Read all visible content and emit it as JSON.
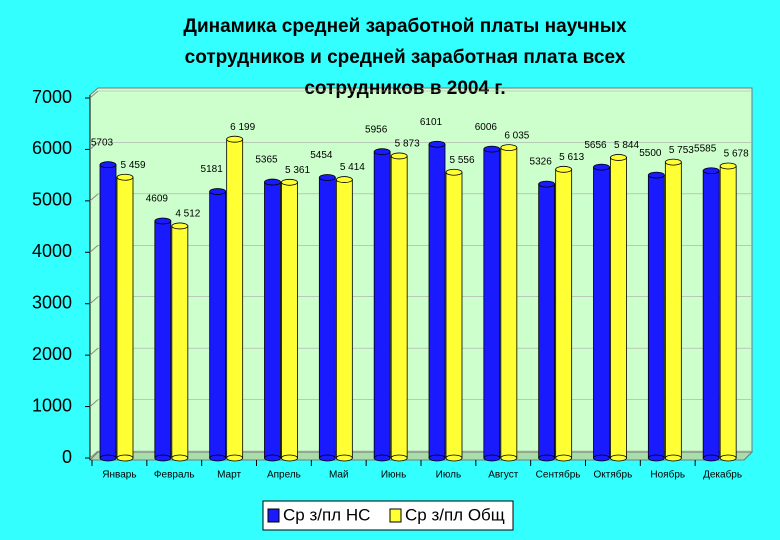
{
  "chart_data": {
    "type": "bar",
    "title": [
      "Динамика средней заработной платы научных",
      "сотрудников и средней заработная плата всех",
      "сотрудников в 2004 г."
    ],
    "categories": [
      "Январь",
      "Февраль",
      "Март",
      "Апрель",
      "Май",
      "Июнь",
      "Июль",
      "Август",
      "Сентябрь",
      "Октябрь",
      "Ноябрь",
      "Декабрь"
    ],
    "series": [
      {
        "name": "Ср з/пл НС",
        "color": "#1a1aff",
        "values": [
          5703,
          4609,
          5181,
          5365,
          5454,
          5956,
          6101,
          6006,
          5326,
          5656,
          5500,
          5585
        ]
      },
      {
        "name": "Ср з/пл Общ",
        "color": "#ffff33",
        "values": [
          5459,
          4512,
          6199,
          5361,
          5414,
          5873,
          5556,
          6035,
          5613,
          5844,
          5753,
          5678
        ],
        "value_labels": [
          "5 459",
          "4 512",
          "6 199",
          "5 361",
          "5 414",
          "5 873",
          "5 556",
          "6 035",
          "5 613",
          "5 844",
          "5 753",
          "5 678"
        ]
      }
    ],
    "ylim": [
      0,
      7000
    ],
    "yticks": [
      0,
      1000,
      2000,
      3000,
      4000,
      5000,
      6000,
      7000
    ],
    "grid": true,
    "legend": "bottom"
  }
}
